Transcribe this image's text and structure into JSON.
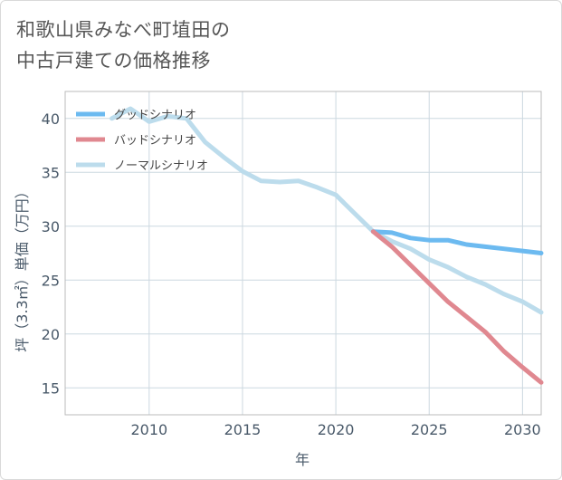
{
  "title": {
    "line1": "和歌山県みなべ町埴田の",
    "line2": "中古戸建ての価格推移"
  },
  "chart_data": {
    "type": "line",
    "xlabel": "年",
    "ylabel": "坪（3.3㎡）単価（万円）",
    "xlim": [
      2005.5,
      2031
    ],
    "ylim": [
      12.5,
      42.5
    ],
    "xticks": [
      2010,
      2015,
      2020,
      2025,
      2030
    ],
    "yticks": [
      15,
      20,
      25,
      30,
      35,
      40
    ],
    "grid": true,
    "legend_position": "top-left",
    "series": [
      {
        "name": "グッドシナリオ",
        "color": "#6cbaf0",
        "x": [
          2022,
          2023,
          2024,
          2025,
          2026,
          2027,
          2028,
          2029,
          2030,
          2031
        ],
        "y": [
          29.5,
          29.4,
          28.9,
          28.7,
          28.7,
          28.3,
          28.1,
          27.9,
          27.7,
          27.5
        ]
      },
      {
        "name": "バッドシナリオ",
        "color": "#e08890",
        "x": [
          2022,
          2023,
          2024,
          2025,
          2026,
          2027,
          2028,
          2029,
          2030,
          2031
        ],
        "y": [
          29.5,
          28.1,
          26.4,
          24.7,
          23.0,
          21.6,
          20.2,
          18.4,
          16.9,
          15.5
        ]
      },
      {
        "name": "ノーマルシナリオ",
        "color": "#bcdcec",
        "x": [
          2008,
          2009,
          2010,
          2011,
          2012,
          2013,
          2014,
          2015,
          2016,
          2017,
          2018,
          2019,
          2020,
          2021,
          2022,
          2023,
          2024,
          2025,
          2026,
          2027,
          2028,
          2029,
          2030,
          2031
        ],
        "y": [
          40.0,
          40.9,
          39.7,
          40.2,
          40.0,
          37.8,
          36.4,
          35.1,
          34.2,
          34.1,
          34.2,
          33.6,
          32.9,
          31.2,
          29.5,
          28.6,
          27.9,
          26.9,
          26.2,
          25.3,
          24.6,
          23.7,
          23.0,
          22.0
        ]
      }
    ]
  }
}
